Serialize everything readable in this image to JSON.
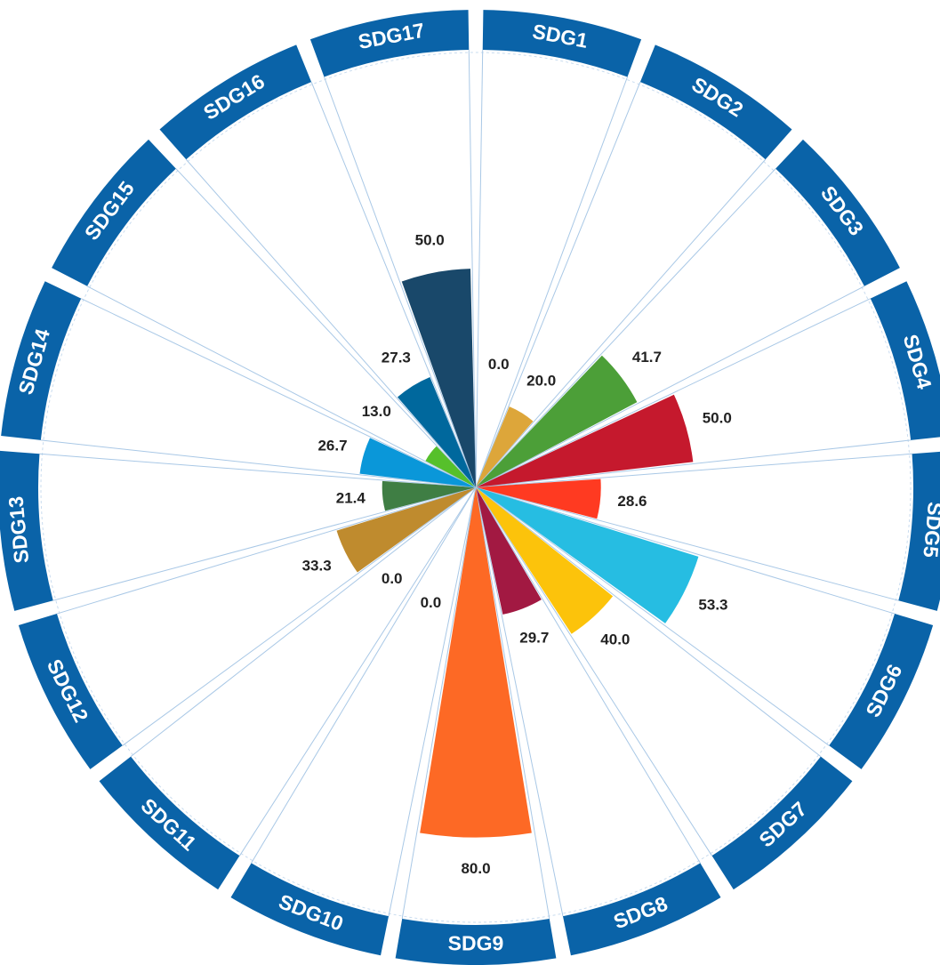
{
  "chart_data": {
    "type": "polar_bar",
    "categories": [
      "SDG1",
      "SDG2",
      "SDG3",
      "SDG4",
      "SDG5",
      "SDG6",
      "SDG7",
      "SDG8",
      "SDG9",
      "SDG10",
      "SDG11",
      "SDG12",
      "SDG13",
      "SDG14",
      "SDG15",
      "SDG16",
      "SDG17"
    ],
    "values": [
      0,
      20,
      41.7,
      50,
      28.6,
      53.3,
      40,
      29.7,
      80,
      0,
      0,
      33.3,
      21.4,
      26.7,
      13,
      27.3,
      50
    ],
    "value_labels": [
      "0.0",
      "20.0",
      "41.7",
      "50.0",
      "28.6",
      "53.3",
      "40.0",
      "29.7",
      "80.0",
      "0.0",
      "0.0",
      "33.3",
      "21.4",
      "26.7",
      "13.0",
      "27.3",
      "50.0"
    ],
    "colors": [
      "#E5243B",
      "#DDA63A",
      "#4C9F38",
      "#C5192D",
      "#FF3A21",
      "#26BDE2",
      "#FCC30B",
      "#A21942",
      "#FD6925",
      "#DD1367",
      "#FD9D24",
      "#BF8B2E",
      "#3F7E44",
      "#0A97D9",
      "#56C02B",
      "#00689D",
      "#19486A"
    ],
    "band_color": "#0A63A8",
    "rlim": [
      0,
      100
    ]
  }
}
